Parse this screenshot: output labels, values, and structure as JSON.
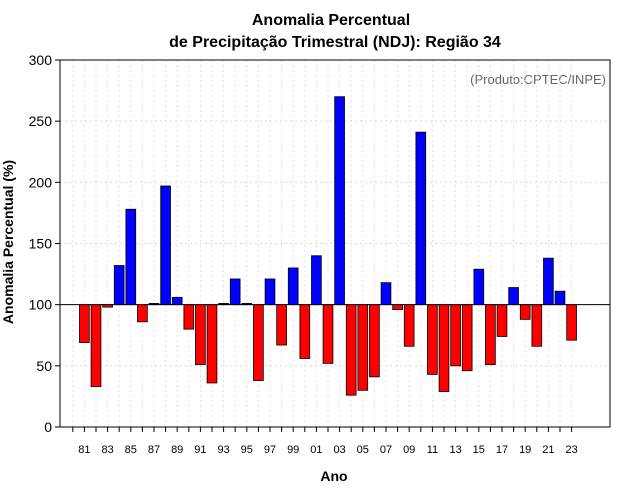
{
  "chart_data": {
    "type": "bar",
    "title": [
      "Anomalia Percentual",
      "de Precipitação Trimestral (NDJ): Região 34"
    ],
    "xlabel": "Ano",
    "ylabel": "Anomalia Percentual (%)",
    "credit": "(Produto:CPTEC/INPE)",
    "baseline": 100,
    "ylim": [
      0,
      300
    ],
    "yticks": [
      0,
      50,
      100,
      150,
      200,
      250,
      300
    ],
    "xtick_labels": [
      "81",
      "83",
      "85",
      "87",
      "89",
      "91",
      "93",
      "95",
      "97",
      "99",
      "01",
      "03",
      "05",
      "07",
      "09",
      "11",
      "13",
      "15",
      "17",
      "19",
      "21",
      "23"
    ],
    "years": [
      "80",
      "81",
      "82",
      "83",
      "84",
      "85",
      "86",
      "87",
      "88",
      "89",
      "90",
      "91",
      "92",
      "93",
      "94",
      "95",
      "96",
      "97",
      "98",
      "99",
      "00",
      "01",
      "02",
      "03",
      "04",
      "05",
      "06",
      "07",
      "08",
      "09",
      "10",
      "11",
      "12",
      "13",
      "14",
      "15",
      "16",
      "17",
      "18",
      "19",
      "20",
      "21",
      "22",
      "23"
    ],
    "values": [
      null,
      69,
      33,
      98,
      132,
      178,
      86,
      101,
      197,
      106,
      80,
      51,
      36,
      101,
      121,
      101,
      38,
      121,
      67,
      130,
      56,
      140,
      52,
      270,
      26,
      30,
      41,
      118,
      96,
      66,
      241,
      43,
      29,
      50,
      46,
      129,
      51,
      74,
      114,
      88,
      66,
      138,
      111,
      71
    ],
    "colors": {
      "above": "#0000ff",
      "below": "#ff0000",
      "outline": "#000000"
    }
  }
}
